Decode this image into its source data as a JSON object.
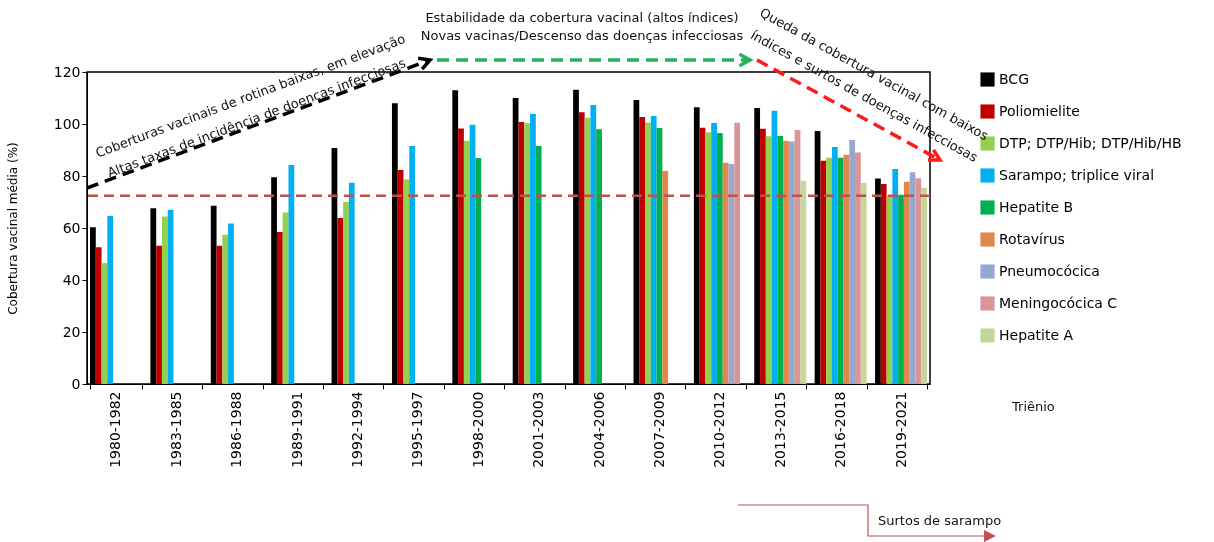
{
  "chart_data": {
    "type": "bar",
    "ylabel": "Cobertura vacinal média (%)",
    "categories": [
      "1980-1982",
      "1983-1985",
      "1986-1988",
      "1989-1991",
      "1992-1994",
      "1995-1997",
      "1998-2000",
      "2001-2003",
      "2004-2006",
      "2007-2009",
      "2010-2012",
      "2013-2015",
      "2016-2018",
      "2019-2021"
    ],
    "series": [
      {
        "name": "BCG",
        "color": "#000000",
        "values": [
          60.3,
          67.6,
          68.6,
          79.5,
          90.8,
          108,
          113,
          110,
          113.2,
          109.2,
          106.4,
          106.2,
          97.3,
          79
        ]
      },
      {
        "name": "Poliomielite",
        "color": "#c00000",
        "values": [
          52.6,
          53.2,
          53.2,
          58.5,
          63.8,
          82.3,
          98.3,
          100.8,
          104.5,
          102.7,
          98.6,
          98.2,
          85.9,
          76.9
        ]
      },
      {
        "name": "DTP; DTP/Hib; DTP/Hib/HB",
        "color": "#92d050",
        "values": [
          46.5,
          64.4,
          57.4,
          66,
          70,
          78.7,
          93.6,
          100.3,
          102.4,
          100.6,
          96.8,
          95.3,
          87,
          72.4
        ]
      },
      {
        "name": "Sarampo; triplice viral",
        "color": "#00b0f0",
        "values": [
          64.7,
          67,
          61.7,
          84.2,
          77.4,
          91.5,
          99.7,
          103.8,
          107.3,
          103.1,
          100.4,
          105.1,
          91.2,
          82.7
        ]
      },
      {
        "name": "Hepatite B",
        "color": "#00b050",
        "values": [
          null,
          null,
          null,
          null,
          null,
          null,
          86.9,
          91.5,
          98,
          98.5,
          96.5,
          95.4,
          87,
          72.8
        ]
      },
      {
        "name": "Rotavírus",
        "color": "#e0884a",
        "values": [
          null,
          null,
          null,
          null,
          null,
          null,
          null,
          null,
          null,
          81.9,
          85.1,
          93.6,
          88.2,
          77.8
        ]
      },
      {
        "name": "Pneumocócica",
        "color": "#95a9d0",
        "values": [
          null,
          null,
          null,
          null,
          null,
          null,
          null,
          null,
          null,
          null,
          84.6,
          93.3,
          93.8,
          81.4
        ]
      },
      {
        "name": "Meningocócica C",
        "color": "#d99694",
        "values": [
          null,
          null,
          null,
          null,
          null,
          null,
          null,
          null,
          null,
          null,
          100.5,
          97.7,
          89,
          79.1
        ]
      },
      {
        "name": "Hepatite A",
        "color": "#c4d79b",
        "values": [
          null,
          null,
          null,
          null,
          null,
          null,
          null,
          null,
          null,
          null,
          null,
          78.2,
          77.3,
          75.5
        ]
      }
    ],
    "ylim": [
      0,
      120
    ],
    "yticks": [
      0,
      20,
      40,
      60,
      80,
      100,
      120
    ],
    "legend": "right",
    "ref_lines": [
      {
        "axis": "y",
        "value": 72.4,
        "color": "#c0504d",
        "line_style": "dashed"
      }
    ],
    "annotations": [
      "Coberturas vacinais de rotina baixas, em elevação",
      "Altas taxas de incidência de doenças infecciosas",
      "Estabilidade da cobertura vacinal (altos índices)",
      "Novas vacinas/Descenso das doenças infecciosas",
      "Queda da cobertura vacinal com baixos",
      "índices e surtos de doenças infecciosas",
      "Surtos de sarampo",
      "Triênio"
    ]
  }
}
